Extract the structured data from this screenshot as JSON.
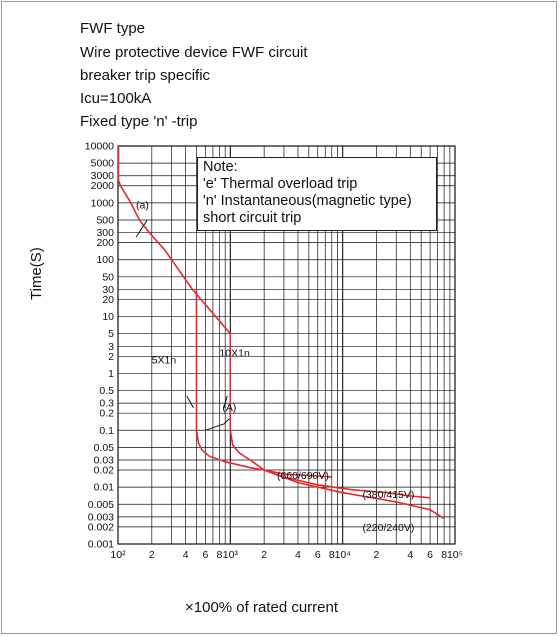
{
  "header": {
    "lines": [
      "FWF type",
      "Wire protective device FWF circuit",
      "breaker trip specific",
      "Icu=100kA",
      "Fixed type 'n' -trip"
    ]
  },
  "note": {
    "lines": [
      "Note:",
      "'e' Thermal overload trip",
      "'n' Instantaneous(magnetic type)",
      "short circuit trip"
    ]
  },
  "chart_data": {
    "type": "line",
    "xscale": "log",
    "yscale": "log",
    "xlim": [
      100,
      100000
    ],
    "ylim": [
      0.001,
      10000
    ],
    "xlabel": "×100% of rated current",
    "ylabel": "Time(S)",
    "x_tick_labels": [
      "10²",
      "2",
      "4",
      "6",
      "8",
      "10³",
      "2",
      "4",
      "6",
      "8",
      "10⁴",
      "2",
      "4",
      "6",
      "8",
      "10⁵"
    ],
    "y_tick_labels": [
      "10000",
      "5000",
      "3000",
      "2000",
      "1000",
      "500",
      "300",
      "200",
      "100",
      "50",
      "30",
      "20",
      "10",
      "5",
      "3",
      "2",
      "1",
      "0.5",
      "0.3",
      "0.2",
      "0.1",
      "0.05",
      "0.03",
      "0.02",
      "0.01",
      "0.005",
      "0.003",
      "0.002",
      "0.001"
    ],
    "grid": true,
    "line_color": "#e8282c",
    "annotations": [
      "(a)",
      "5X1n",
      "10X1n",
      "(A)",
      "(660/690V)",
      "(380/415V)",
      "(220/240V)"
    ],
    "series": [
      {
        "x": [
          101,
          101,
          105,
          115,
          130,
          155,
          190,
          260,
          360,
          460,
          1000,
          1000
        ],
        "y": [
          10000,
          2500,
          2000,
          1500,
          1000,
          500,
          300,
          150,
          60,
          30,
          5,
          0.1
        ]
      },
      {
        "x": [
          500,
          500
        ],
        "y": [
          30,
          0.1
        ]
      },
      {
        "x": [
          500,
          520,
          560,
          650,
          900,
          1500,
          2000
        ],
        "y": [
          0.1,
          0.06,
          0.045,
          0.035,
          0.028,
          0.022,
          0.02
        ]
      },
      {
        "x": [
          1000,
          1050,
          1200,
          1500,
          2000
        ],
        "y": [
          0.1,
          0.055,
          0.04,
          0.03,
          0.02
        ]
      },
      {
        "x": [
          2000,
          3000,
          5000,
          8000
        ],
        "y": [
          0.02,
          0.017,
          0.016,
          0.015
        ]
      },
      {
        "x": [
          2000,
          3000,
          6000,
          12000,
          25000,
          40000,
          60000
        ],
        "y": [
          0.02,
          0.015,
          0.011,
          0.009,
          0.008,
          0.007,
          0.0065
        ]
      },
      {
        "x": [
          2000,
          4000,
          10000,
          30000,
          60000,
          80000
        ],
        "y": [
          0.02,
          0.012,
          0.008,
          0.0055,
          0.004,
          0.0028
        ]
      }
    ]
  }
}
